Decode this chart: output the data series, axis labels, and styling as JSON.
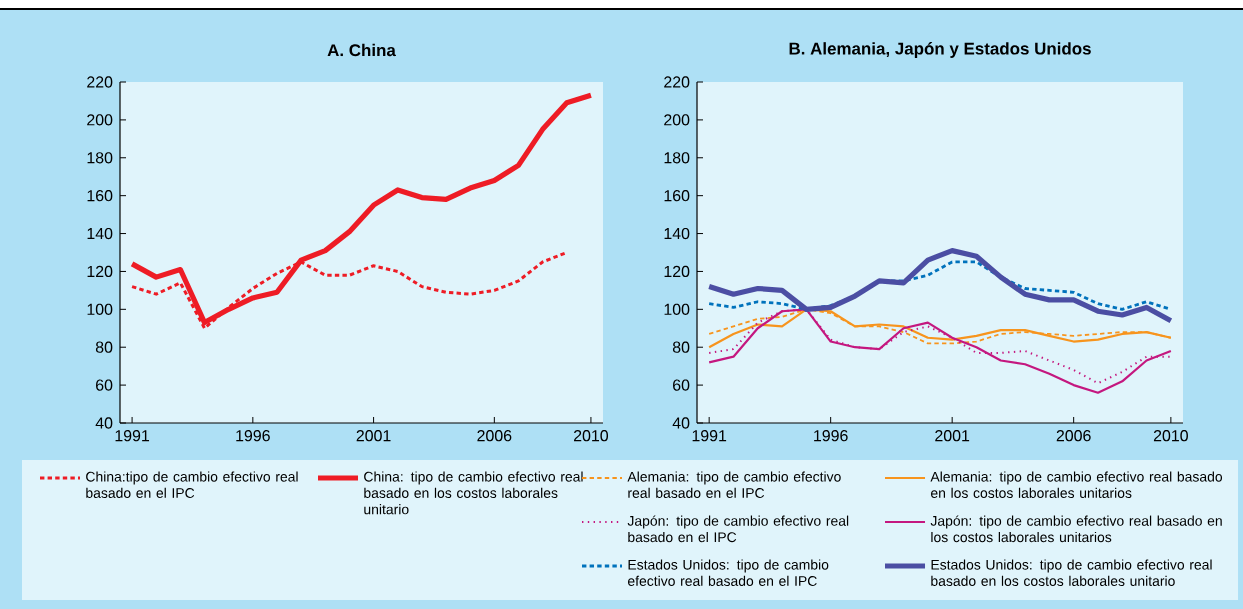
{
  "chart_data": [
    {
      "type": "line",
      "title": "A. China",
      "x": [
        1991,
        1992,
        1993,
        1994,
        1995,
        1996,
        1997,
        1998,
        1999,
        2000,
        2001,
        2002,
        2003,
        2004,
        2005,
        2006,
        2007,
        2008,
        2009,
        2010
      ],
      "xlim": [
        1990.5,
        2010.5
      ],
      "xticks": [
        1991,
        1996,
        2001,
        2006,
        2010
      ],
      "ylim": [
        40,
        220
      ],
      "yticks": [
        40,
        60,
        80,
        100,
        120,
        140,
        160,
        180,
        200,
        220
      ],
      "legend": "bottom",
      "series": [
        {
          "name": "China:tipo de cambio efectivo real basado en el IPC",
          "color": "#ee1c25",
          "line_style": "dashed",
          "values": [
            112,
            108,
            114,
            90,
            101,
            111,
            119,
            125,
            118,
            118,
            123,
            120,
            112,
            109,
            108,
            110,
            115,
            125,
            130,
            null
          ]
        },
        {
          "name": "China: tipo de cambio efectivo real basado en los costos laborales unitario",
          "color": "#ee1c25",
          "line_style": "solid",
          "values": [
            124,
            117,
            121,
            93,
            100,
            106,
            109,
            126,
            131,
            141,
            155,
            163,
            159,
            158,
            164,
            168,
            176,
            195,
            209,
            213
          ]
        }
      ]
    },
    {
      "type": "line",
      "title": "B. Alemania, Japón y Estados Unidos",
      "x": [
        1991,
        1992,
        1993,
        1994,
        1995,
        1996,
        1997,
        1998,
        1999,
        2000,
        2001,
        2002,
        2003,
        2004,
        2005,
        2006,
        2007,
        2008,
        2009,
        2010
      ],
      "xlim": [
        1990.5,
        2010.5
      ],
      "xticks": [
        1991,
        1996,
        2001,
        2006,
        2010
      ],
      "ylim": [
        40,
        220
      ],
      "yticks": [
        40,
        60,
        80,
        100,
        120,
        140,
        160,
        180,
        200,
        220
      ],
      "legend": "bottom",
      "series": [
        {
          "name": "Alemania: tipo de cambio efectivo real basado en el IPC",
          "color": "#f7941d",
          "line_style": "dashed",
          "values": [
            87,
            91,
            95,
            96,
            100,
            98,
            91,
            91,
            88,
            82,
            82,
            83,
            87,
            88,
            87,
            86,
            87,
            88,
            88,
            85
          ]
        },
        {
          "name": "Alemania: tipo de cambio efectivo real basado en los costos laborales unitarios",
          "color": "#f7941d",
          "line_style": "solid",
          "values": [
            80,
            87,
            92,
            91,
            100,
            99,
            91,
            92,
            91,
            85,
            84,
            86,
            89,
            89,
            86,
            83,
            84,
            87,
            88,
            85
          ]
        },
        {
          "name": "Japón: tipo de cambio efectivo real basado en el IPC",
          "color": "#c4177f",
          "line_style": "dotted",
          "values": [
            77,
            79,
            93,
            99,
            100,
            84,
            80,
            79,
            88,
            91,
            85,
            77,
            77,
            78,
            73,
            68,
            61,
            67,
            75,
            75
          ]
        },
        {
          "name": "Japón: tipo de cambio efectivo real basado en los costos laborales unitarios",
          "color": "#c4177f",
          "line_style": "solid",
          "values": [
            72,
            75,
            90,
            99,
            100,
            83,
            80,
            79,
            90,
            93,
            85,
            80,
            73,
            71,
            66,
            60,
            56,
            62,
            73,
            78
          ]
        },
        {
          "name": "Estados Unidos: tipo de cambio efectivo real basado en el IPC",
          "color": "#0072bc",
          "line_style": "dashed",
          "values": [
            103,
            101,
            104,
            103,
            100,
            102,
            107,
            115,
            115,
            118,
            125,
            125,
            117,
            111,
            110,
            109,
            103,
            100,
            104,
            100
          ]
        },
        {
          "name": "Estados Unidos: tipo de cambio efectivo real basado en los costos laborales unitario",
          "color": "#4b4ea3",
          "line_style": "solid",
          "values": [
            112,
            108,
            111,
            110,
            100,
            101,
            107,
            115,
            114,
            126,
            131,
            128,
            117,
            108,
            105,
            105,
            99,
            97,
            101,
            94
          ]
        }
      ]
    }
  ]
}
